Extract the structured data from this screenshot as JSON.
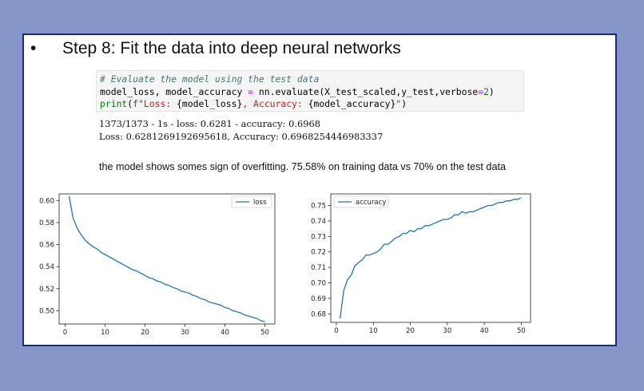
{
  "slide": {
    "bullet": "•",
    "heading": "Step 8: Fit the data into deep neural networks",
    "code_lines": [
      [
        {
          "t": "# Evaluate the model using the test data",
          "c": "c-comment"
        }
      ],
      [
        {
          "t": "model_loss, model_accuracy ",
          "c": ""
        },
        {
          "t": "=",
          "c": "c-op"
        },
        {
          "t": " nn.evaluate(X_test_scaled,y_test,verbose",
          "c": ""
        },
        {
          "t": "=",
          "c": "c-op"
        },
        {
          "t": "2",
          "c": "c-num"
        },
        {
          "t": ")",
          "c": ""
        }
      ],
      [
        {
          "t": "print",
          "c": "c-fn"
        },
        {
          "t": "(",
          "c": ""
        },
        {
          "t": "f\"Loss: ",
          "c": "c-str"
        },
        {
          "t": "{model_loss}",
          "c": ""
        },
        {
          "t": ", Accuracy: ",
          "c": "c-str"
        },
        {
          "t": "{model_accuracy}",
          "c": ""
        },
        {
          "t": "\"",
          "c": "c-str"
        },
        {
          "t": ")",
          "c": ""
        }
      ]
    ],
    "output_line1": "1373/1373 - 1s - loss: 0.6281 - accuracy: 0.6968",
    "output_line2": "Loss: 0.6281269192695618, Accuracy: 0.6968254446983337",
    "note": "the model shows somes sign of overfitting. 75.58% on training data vs 70% on the test data"
  },
  "chart_data": [
    {
      "type": "line",
      "xlim": [
        -1.5,
        52.5
      ],
      "ylim": [
        0.488,
        0.606
      ],
      "xticks": [
        0,
        10,
        20,
        30,
        40,
        50
      ],
      "yticks": [
        0.5,
        0.52,
        0.54,
        0.56,
        0.58,
        0.6
      ],
      "ytick_labels": [
        "0.50",
        "0.52",
        "0.54",
        "0.56",
        "0.58",
        "0.60"
      ],
      "legend_position": "top-right",
      "color": "#1f77b4",
      "series": [
        {
          "name": "loss",
          "x": [
            1,
            2,
            3,
            4,
            5,
            6,
            7,
            8,
            9,
            10,
            11,
            12,
            13,
            14,
            15,
            16,
            17,
            18,
            19,
            20,
            21,
            22,
            23,
            24,
            25,
            26,
            27,
            28,
            29,
            30,
            31,
            32,
            33,
            34,
            35,
            36,
            37,
            38,
            39,
            40,
            41,
            42,
            43,
            44,
            45,
            46,
            47,
            48,
            49,
            50
          ],
          "values": [
            0.604,
            0.584,
            0.575,
            0.569,
            0.564,
            0.561,
            0.558,
            0.556,
            0.553,
            0.551,
            0.549,
            0.547,
            0.545,
            0.543,
            0.541,
            0.539,
            0.537,
            0.536,
            0.534,
            0.532,
            0.53,
            0.529,
            0.527,
            0.526,
            0.524,
            0.523,
            0.521,
            0.52,
            0.518,
            0.517,
            0.516,
            0.514,
            0.513,
            0.511,
            0.51,
            0.508,
            0.507,
            0.506,
            0.505,
            0.503,
            0.502,
            0.5,
            0.499,
            0.498,
            0.496,
            0.495,
            0.494,
            0.493,
            0.491,
            0.49
          ]
        }
      ]
    },
    {
      "type": "line",
      "xlim": [
        -1.5,
        52.5
      ],
      "ylim": [
        0.6745,
        0.7575
      ],
      "xticks": [
        0,
        10,
        20,
        30,
        40,
        50
      ],
      "yticks": [
        0.68,
        0.69,
        0.7,
        0.71,
        0.72,
        0.73,
        0.74,
        0.75
      ],
      "ytick_labels": [
        "0.68",
        "0.69",
        "0.70",
        "0.71",
        "0.72",
        "0.73",
        "0.74",
        "0.75"
      ],
      "legend_position": "top-left",
      "color": "#1f77b4",
      "series": [
        {
          "name": "accuracy",
          "x": [
            1,
            2,
            3,
            4,
            5,
            6,
            7,
            8,
            9,
            10,
            11,
            12,
            13,
            14,
            15,
            16,
            17,
            18,
            19,
            20,
            21,
            22,
            23,
            24,
            25,
            26,
            27,
            28,
            29,
            30,
            31,
            32,
            33,
            34,
            35,
            36,
            37,
            38,
            39,
            40,
            41,
            42,
            43,
            44,
            45,
            46,
            47,
            48,
            49,
            50
          ],
          "values": [
            0.677,
            0.695,
            0.702,
            0.705,
            0.711,
            0.713,
            0.715,
            0.718,
            0.718,
            0.719,
            0.72,
            0.722,
            0.725,
            0.725,
            0.727,
            0.729,
            0.73,
            0.732,
            0.732,
            0.734,
            0.733,
            0.735,
            0.735,
            0.737,
            0.737,
            0.738,
            0.739,
            0.74,
            0.741,
            0.741,
            0.742,
            0.744,
            0.744,
            0.746,
            0.745,
            0.746,
            0.746,
            0.747,
            0.748,
            0.749,
            0.75,
            0.75,
            0.751,
            0.752,
            0.752,
            0.753,
            0.753,
            0.754,
            0.754,
            0.755
          ]
        }
      ]
    }
  ]
}
